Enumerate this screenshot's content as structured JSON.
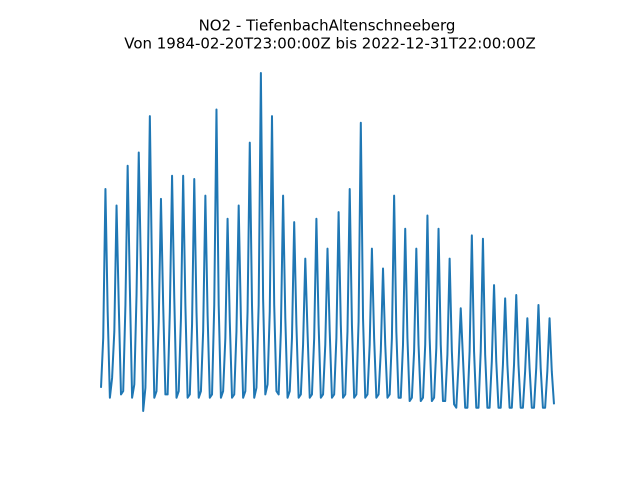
{
  "chart_data": {
    "type": "line",
    "title": "NO2 - TiefenbachAltenschneeberg",
    "subtitle": "Von 1984-02-20T23:00:00Z bis 2022-12-31T22:00:00Z",
    "color": "#1f77b4",
    "ylim": [
      -2,
      100
    ],
    "values": [
      5,
      20,
      65,
      28,
      2,
      8,
      22,
      60,
      30,
      3,
      4,
      30,
      72,
      35,
      2,
      6,
      33,
      76,
      40,
      -2,
      5,
      35,
      87,
      38,
      2,
      4,
      25,
      62,
      30,
      3,
      3,
      28,
      69,
      32,
      2,
      4,
      26,
      69,
      30,
      2,
      3,
      24,
      68,
      28,
      2,
      4,
      22,
      63,
      27,
      2,
      3,
      30,
      89,
      30,
      2,
      4,
      20,
      56,
      25,
      2,
      3,
      22,
      60,
      26,
      2,
      4,
      28,
      79,
      30,
      2,
      5,
      30,
      100,
      32,
      3,
      6,
      28,
      87,
      30,
      4,
      3,
      22,
      63,
      26,
      2,
      4,
      20,
      55,
      24,
      2,
      3,
      18,
      44,
      22,
      2,
      3,
      20,
      56,
      24,
      2,
      3,
      18,
      47,
      22,
      2,
      3,
      20,
      58,
      24,
      2,
      3,
      22,
      65,
      24,
      2,
      3,
      25,
      85,
      26,
      2,
      3,
      18,
      47,
      20,
      2,
      3,
      16,
      41,
      18,
      2,
      3,
      20,
      63,
      22,
      2,
      2,
      18,
      53,
      20,
      1,
      2,
      16,
      47,
      18,
      1,
      2,
      18,
      57,
      20,
      1,
      2,
      17,
      53,
      18,
      1,
      1,
      15,
      44,
      16,
      0,
      -1,
      12,
      29,
      14,
      -1,
      -1,
      16,
      51,
      16,
      -1,
      -1,
      16,
      50,
      15,
      -1,
      -1,
      13,
      36,
      13,
      -1,
      -1,
      12,
      32,
      12,
      -1,
      -1,
      12,
      33,
      12,
      -1,
      -1,
      10,
      26,
      11,
      -1,
      -1,
      11,
      30,
      11,
      -1,
      -1,
      10,
      26,
      10,
      0
    ]
  }
}
